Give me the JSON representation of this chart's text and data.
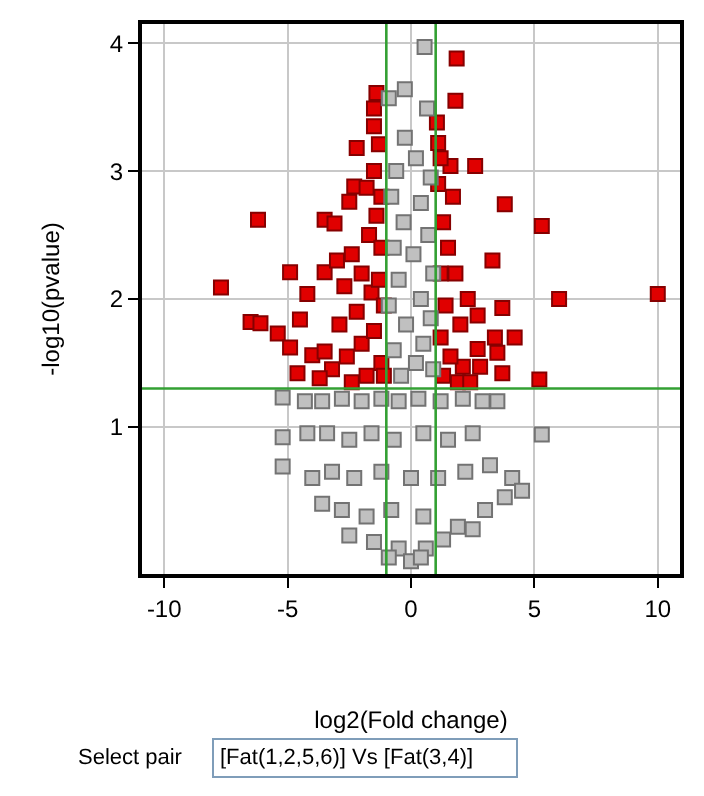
{
  "chart_data": {
    "type": "scatter",
    "xlabel": "log2(Fold change)",
    "ylabel": "-log10(pvalue)",
    "xlim": [
      -10.9,
      10.9
    ],
    "ylim": [
      -0.15,
      4.15
    ],
    "xticks": [
      -10,
      -5,
      0,
      5,
      10
    ],
    "yticks": [
      1,
      2,
      3,
      4
    ],
    "grid": true,
    "marker": "square",
    "series": [
      {
        "color": "#e00000",
        "x": [
          -7.7,
          -6.2,
          -4.9,
          -3.5,
          -3.5,
          -3.1,
          -2.2,
          -2.5,
          -2.3,
          -1.8,
          -1.5,
          -1.4,
          -1.5,
          -1.5,
          -1.3,
          -4.2,
          -6.5,
          -6.1,
          -5.4,
          -4.5,
          -4.9,
          -4.6,
          -4.0,
          -3.5,
          -3.0,
          -2.7,
          -2.4,
          -2.0,
          -1.7,
          -1.4,
          -1.2,
          -1.2,
          -1.6,
          -2.2,
          -2.9,
          -3.2,
          -2.6,
          -2.0,
          -1.5,
          -1.2,
          -1.8,
          -2.4,
          -3.7,
          -1.3,
          -1.1,
          -1.1,
          1.85,
          1.8,
          2.6,
          3.8,
          5.3,
          6.0,
          10.0,
          3.7,
          2.7,
          3.4,
          4.2,
          1.6,
          1.7,
          1.05,
          1.1,
          1.2,
          2.7,
          3.5,
          3.7,
          5.2,
          2.8,
          2.1,
          1.3,
          1.5,
          1.2,
          1.8,
          1.4,
          2.0,
          1.2,
          1.6,
          1.3,
          2.3,
          1.1,
          1.9,
          2.4,
          3.3
        ],
        "values": [
          2.09,
          2.62,
          2.21,
          2.21,
          2.62,
          2.59,
          3.18,
          2.76,
          2.88,
          2.87,
          3.0,
          3.61,
          3.49,
          3.35,
          3.21,
          2.04,
          1.82,
          1.81,
          1.73,
          1.84,
          1.62,
          1.42,
          1.56,
          1.59,
          2.3,
          2.1,
          2.35,
          2.2,
          2.5,
          2.65,
          2.8,
          2.4,
          2.05,
          1.9,
          1.8,
          1.45,
          1.55,
          1.65,
          1.75,
          1.5,
          1.4,
          1.35,
          1.38,
          2.15,
          1.95,
          1.4,
          3.88,
          3.55,
          3.04,
          2.74,
          2.57,
          2.0,
          2.04,
          1.93,
          1.87,
          1.7,
          1.7,
          3.04,
          2.8,
          3.38,
          3.22,
          3.1,
          1.61,
          1.58,
          1.42,
          1.37,
          1.47,
          1.47,
          2.6,
          2.4,
          2.2,
          2.2,
          1.95,
          1.8,
          1.7,
          1.55,
          1.4,
          2.0,
          2.9,
          1.35,
          1.35,
          2.3
        ]
      },
      {
        "color": "#c0c0c0",
        "x": [
          0.55,
          -0.25,
          -0.9,
          0.65,
          -0.25,
          0.2,
          -0.6,
          0.8,
          -0.8,
          0.4,
          -0.3,
          0.7,
          -0.7,
          0.1,
          0.9,
          -0.5,
          0.4,
          -0.9,
          0.8,
          -0.2,
          0.5,
          -0.7,
          0.2,
          0.9,
          -0.4,
          -5.2,
          -5.2,
          -5.2,
          -4.3,
          -3.6,
          -2.8,
          -2.0,
          -1.2,
          -0.5,
          0.3,
          1.2,
          2.1,
          2.9,
          3.5,
          -4.2,
          -3.4,
          -2.5,
          -1.6,
          -0.7,
          0.5,
          1.5,
          2.5,
          5.3,
          -4.0,
          -3.2,
          -2.3,
          -1.2,
          0.0,
          1.1,
          2.2,
          3.2,
          4.1,
          4.5,
          -3.6,
          -2.8,
          -1.8,
          -0.8,
          0.5,
          1.9,
          3.0,
          3.8,
          -2.5,
          -1.5,
          -0.5,
          0.6,
          1.3,
          -0.9,
          0.0,
          0.4,
          2.5
        ],
        "values": [
          3.97,
          3.64,
          3.57,
          3.49,
          3.26,
          3.1,
          3.0,
          2.95,
          2.8,
          2.75,
          2.6,
          2.5,
          2.4,
          2.35,
          2.2,
          2.15,
          2.0,
          1.95,
          1.85,
          1.8,
          1.65,
          1.6,
          1.5,
          1.45,
          1.4,
          1.23,
          0.92,
          0.69,
          1.2,
          1.2,
          1.22,
          1.2,
          1.22,
          1.2,
          1.22,
          1.2,
          1.22,
          1.2,
          1.2,
          0.95,
          0.95,
          0.9,
          0.95,
          0.9,
          0.95,
          0.9,
          0.95,
          0.94,
          0.6,
          0.65,
          0.6,
          0.65,
          0.6,
          0.6,
          0.65,
          0.7,
          0.6,
          0.5,
          0.4,
          0.35,
          0.3,
          0.35,
          0.3,
          0.22,
          0.35,
          0.45,
          0.15,
          0.1,
          0.05,
          0.05,
          0.12,
          -0.02,
          -0.05,
          -0.02,
          0.2
        ]
      }
    ],
    "ref_lines": [
      {
        "axis": "y",
        "value": 1.3,
        "color": "#33a033"
      },
      {
        "axis": "x",
        "value": -1,
        "color": "#33a033"
      },
      {
        "axis": "x",
        "value": 1,
        "color": "#33a033"
      }
    ],
    "annotations": [
      "Select pair",
      "[Fat(1,2,5,6)] Vs [Fat(3,4)]"
    ]
  }
}
